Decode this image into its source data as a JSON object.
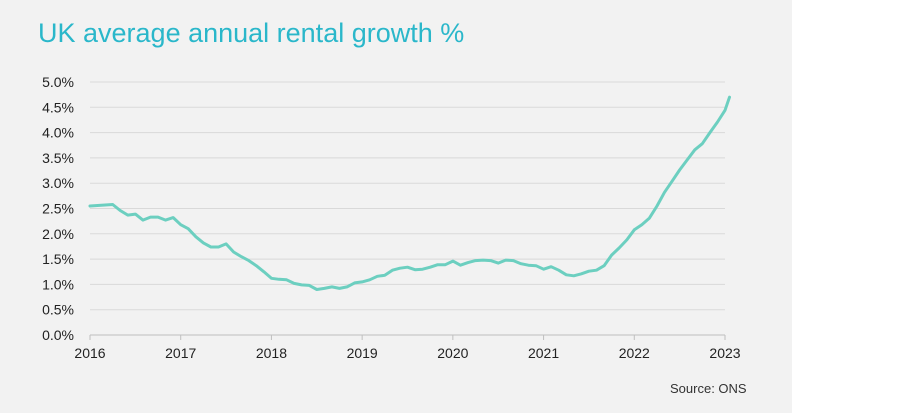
{
  "chart_data": {
    "type": "line",
    "title": "UK average annual rental growth %",
    "source": "Source: ONS",
    "xlim": [
      2016,
      2023.1
    ],
    "ylim": [
      0,
      5
    ],
    "x_ticks": [
      "2016",
      "2017",
      "2018",
      "2019",
      "2020",
      "2021",
      "2022",
      "2023"
    ],
    "x_tick_values": [
      2016,
      2017,
      2018,
      2019,
      2020,
      2021,
      2022,
      2023
    ],
    "y_ticks": [
      "0.0%",
      "0.5%",
      "1.0%",
      "1.5%",
      "2.0%",
      "2.5%",
      "3.0%",
      "3.5%",
      "4.0%",
      "4.5%",
      "5.0%"
    ],
    "y_tick_values": [
      0,
      0.5,
      1,
      1.5,
      2,
      2.5,
      3,
      3.5,
      4,
      4.5,
      5
    ],
    "grid": "horizontal",
    "line_color": "#6ccfc0",
    "series": [
      {
        "x": [
          2016.0,
          2016.083,
          2016.167,
          2016.25,
          2016.333,
          2016.417,
          2016.5,
          2016.583,
          2016.667,
          2016.75,
          2016.833,
          2016.917,
          2017.0,
          2017.083,
          2017.167,
          2017.25,
          2017.333,
          2017.417,
          2017.5,
          2017.583,
          2017.667,
          2017.75,
          2017.833,
          2017.917,
          2018.0,
          2018.083,
          2018.167,
          2018.25,
          2018.333,
          2018.417,
          2018.5,
          2018.583,
          2018.667,
          2018.75,
          2018.833,
          2018.917,
          2019.0,
          2019.083,
          2019.167,
          2019.25,
          2019.333,
          2019.417,
          2019.5,
          2019.583,
          2019.667,
          2019.75,
          2019.833,
          2019.917,
          2020.0,
          2020.083,
          2020.167,
          2020.25,
          2020.333,
          2020.417,
          2020.5,
          2020.583,
          2020.667,
          2020.75,
          2020.833,
          2020.917,
          2021.0,
          2021.083,
          2021.167,
          2021.25,
          2021.333,
          2021.417,
          2021.5,
          2021.583,
          2021.667,
          2021.75,
          2021.833,
          2021.917,
          2022.0,
          2022.083,
          2022.167,
          2022.25,
          2022.333,
          2022.417,
          2022.5,
          2022.583,
          2022.667,
          2022.75,
          2022.833,
          2022.917,
          2023.0,
          2023.05
        ],
        "values": [
          2.55,
          2.56,
          2.57,
          2.58,
          2.46,
          2.37,
          2.39,
          2.27,
          2.33,
          2.33,
          2.27,
          2.32,
          2.18,
          2.1,
          1.94,
          1.82,
          1.74,
          1.74,
          1.8,
          1.64,
          1.55,
          1.47,
          1.37,
          1.25,
          1.12,
          1.1,
          1.09,
          1.02,
          0.99,
          0.98,
          0.9,
          0.92,
          0.95,
          0.92,
          0.95,
          1.03,
          1.05,
          1.09,
          1.16,
          1.18,
          1.28,
          1.32,
          1.34,
          1.29,
          1.3,
          1.34,
          1.39,
          1.39,
          1.46,
          1.38,
          1.43,
          1.47,
          1.48,
          1.47,
          1.42,
          1.48,
          1.47,
          1.41,
          1.38,
          1.37,
          1.3,
          1.35,
          1.28,
          1.19,
          1.17,
          1.21,
          1.26,
          1.28,
          1.37,
          1.58,
          1.72,
          1.88,
          2.08,
          2.18,
          2.31,
          2.55,
          2.82,
          3.04,
          3.26,
          3.46,
          3.66,
          3.78,
          4.0,
          4.21,
          4.44,
          4.7
        ]
      }
    ]
  }
}
